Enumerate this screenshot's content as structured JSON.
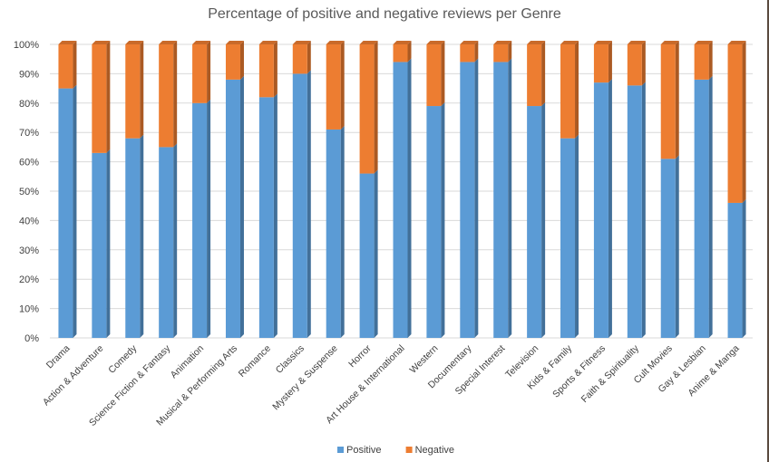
{
  "chart_data": {
    "type": "bar",
    "stacked": true,
    "title": "Percentage of positive and negative reviews per Genre",
    "xlabel": "",
    "ylabel": "",
    "ylim": [
      0,
      100
    ],
    "y_ticks": [
      "0%",
      "10%",
      "20%",
      "30%",
      "40%",
      "50%",
      "60%",
      "70%",
      "80%",
      "90%",
      "100%"
    ],
    "grid": true,
    "legend_position": "bottom",
    "categories": [
      "Drama",
      "Action & Adventure",
      "Comedy",
      "Science Fiction & Fantasy",
      "Animation",
      "Musical & Performing Arts",
      "Romance",
      "Classics",
      "Mystery & Suspense",
      "Horror",
      "Art House & International",
      "Western",
      "Documentary",
      "Special Interest",
      "Television",
      "Kids & Family",
      "Sports & Fitness",
      "Faith & Spirituality",
      "Cult Movies",
      "Gay & Lesbian",
      "Anime & Manga"
    ],
    "series": [
      {
        "name": "Positive",
        "color": "#5b9bd5",
        "values": [
          85,
          63,
          68,
          65,
          80,
          88,
          82,
          90,
          71,
          56,
          94,
          79,
          94,
          94,
          79,
          68,
          87,
          86,
          61,
          88,
          46
        ]
      },
      {
        "name": "Negative",
        "color": "#ed7d31",
        "values": [
          15,
          37,
          32,
          35,
          20,
          12,
          18,
          10,
          29,
          44,
          6,
          21,
          6,
          6,
          21,
          32,
          13,
          14,
          39,
          12,
          54
        ]
      }
    ]
  }
}
